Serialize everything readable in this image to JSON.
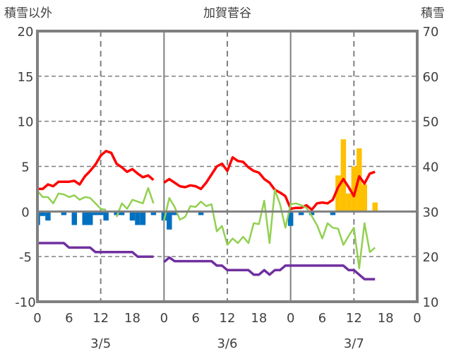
{
  "chart_data": {
    "type": "line",
    "title": "加賀菅谷",
    "left_axis_label": "積雪以外",
    "right_axis_label": "積雪",
    "ylim": [
      -10,
      20
    ],
    "y_ticks": [
      -10,
      -5,
      0,
      5,
      10,
      15,
      20
    ],
    "y2lim": [
      10,
      70
    ],
    "y2_ticks": [
      10,
      20,
      30,
      40,
      50,
      60,
      70
    ],
    "x_hours_total": 72,
    "x_tick_labels": [
      "0",
      "6",
      "12",
      "18",
      "0",
      "6",
      "12",
      "18",
      "0",
      "6",
      "12",
      "18",
      "0"
    ],
    "date_labels": [
      "3/5",
      "3/6",
      "3/7"
    ],
    "grid": true,
    "colors": {
      "red": "#ff0000",
      "green": "#92d050",
      "purple": "#7030a0",
      "blue": "#0070c0",
      "orange": "#ffc000",
      "axis": "#808080"
    },
    "series": [
      {
        "name": "red-line",
        "kind": "line",
        "color": "#ff0000",
        "values": [
          2.5,
          2.5,
          3.0,
          2.8,
          3.3,
          3.3,
          3.3,
          3.4,
          3.0,
          3.9,
          4.5,
          5.2,
          6.2,
          6.7,
          6.5,
          5.3,
          4.9,
          4.4,
          4.7,
          4.2,
          3.8,
          4.0,
          3.5,
          null,
          3.2,
          3.6,
          3.2,
          2.8,
          2.7,
          2.9,
          2.8,
          2.5,
          3.2,
          4.1,
          5.0,
          5.3,
          4.5,
          6.0,
          5.6,
          5.5,
          4.9,
          4.5,
          4.3,
          3.6,
          3.2,
          2.4,
          2.1,
          1.7,
          0.3,
          0.4,
          0.4,
          0.7,
          0.2,
          0.9,
          1.0,
          0.9,
          1.3,
          2.7,
          3.6,
          2.7,
          1.7,
          3.9,
          3.1,
          4.2,
          4.4
        ]
      },
      {
        "name": "green-line",
        "kind": "line",
        "color": "#92d050",
        "values": [
          2.3,
          1.6,
          1.6,
          0.9,
          2.0,
          1.9,
          1.6,
          1.8,
          1.3,
          1.6,
          1.5,
          0.9,
          0.3,
          0.2,
          null,
          -0.6,
          0.9,
          0.3,
          1.3,
          1.1,
          0.9,
          2.6,
          0.9,
          null,
          -1.0,
          1.5,
          0.5,
          -0.9,
          -0.6,
          0.6,
          0.5,
          1.1,
          0.6,
          0.8,
          -2.2,
          -1.6,
          -3.7,
          -3.0,
          -3.5,
          -2.8,
          -3.5,
          -1.3,
          -1.4,
          1.2,
          -3.5,
          2.4,
          0.8,
          -1.8,
          0.8,
          0.9,
          0.7,
          0.4,
          -0.5,
          -1.5,
          -3.0,
          -1.3,
          -1.8,
          -1.9,
          -3.7,
          -2.7,
          -1.8,
          -6.3,
          -1.3,
          -4.5,
          -4.0
        ]
      },
      {
        "name": "purple-line",
        "kind": "line",
        "color": "#7030a0",
        "values": [
          -3.5,
          -3.5,
          -3.5,
          -3.5,
          -3.5,
          -3.5,
          -4,
          -4,
          -4,
          -4,
          -4,
          -4.5,
          -4.5,
          -4.5,
          -4.5,
          -4.5,
          -4.5,
          -4.5,
          -4.5,
          -5,
          -5,
          -5,
          -5,
          null,
          -5.6,
          -5.1,
          -5.5,
          -5.5,
          -5.5,
          -5.5,
          -5.5,
          -5.5,
          -5.5,
          -5.5,
          -6,
          -6,
          -6.5,
          -6.5,
          -6.5,
          -6.5,
          -6.5,
          -7,
          -7,
          -6.5,
          -7,
          -6.5,
          -6.5,
          -6,
          -6,
          -6,
          -6,
          -6,
          -6,
          -6,
          -6,
          -6,
          -6,
          -6,
          -6,
          -6.5,
          -6.5,
          -7,
          -7.5,
          -7.5,
          -7.5
        ]
      },
      {
        "name": "blue-bars",
        "kind": "bar",
        "color": "#0070c0",
        "values": [
          -1.5,
          -0.5,
          -1.0,
          0,
          0,
          -0.4,
          0,
          -1.5,
          0,
          -1.5,
          -1.5,
          -0.4,
          -0.4,
          -1.0,
          0,
          -0.4,
          -0.4,
          0,
          -1.0,
          -1.5,
          -1.5,
          0,
          -0.4,
          0,
          -1.0,
          -2.0,
          -0.4,
          0,
          0,
          0,
          0,
          -0.4,
          0,
          0,
          0,
          0,
          0,
          0,
          0,
          0,
          0,
          0,
          0,
          0,
          0,
          0,
          0,
          0,
          -1.6,
          0,
          -0.4,
          0,
          -0.4,
          0,
          0,
          0,
          -0.4,
          0,
          0,
          0,
          0,
          0,
          0,
          0,
          0
        ]
      },
      {
        "name": "orange-bars",
        "kind": "bar",
        "color": "#ffc000",
        "values": [
          0,
          0,
          0,
          0,
          0,
          0,
          0,
          0,
          0,
          0,
          0,
          0,
          0,
          0,
          0,
          0,
          0,
          0,
          0,
          0,
          0,
          0,
          0,
          0,
          0,
          0,
          0,
          0,
          0,
          0,
          0,
          0,
          0,
          0,
          0,
          0,
          0,
          0,
          0,
          0,
          0,
          0,
          0,
          0,
          0,
          0,
          0,
          0,
          0,
          0,
          0,
          0,
          0,
          0,
          0,
          0,
          0,
          4,
          8,
          2,
          5,
          7,
          3,
          0,
          1
        ]
      }
    ]
  }
}
